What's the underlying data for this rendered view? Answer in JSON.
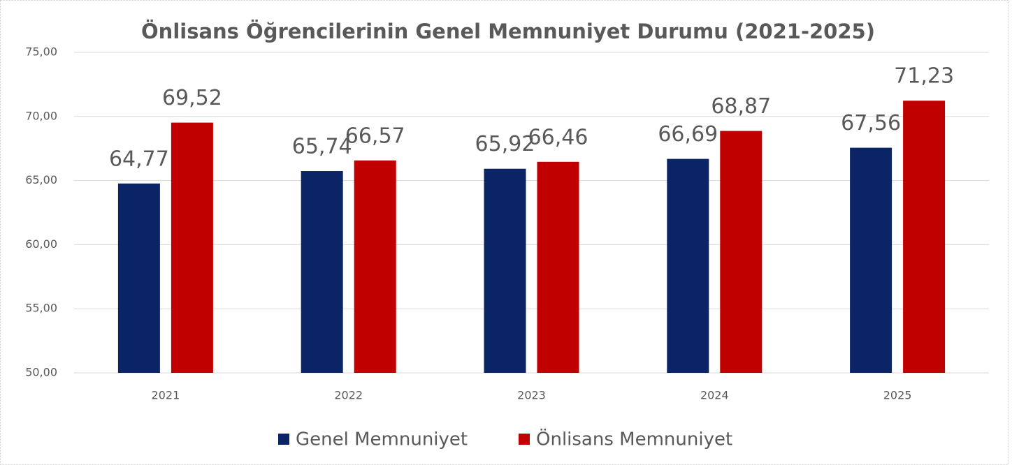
{
  "chart_data": {
    "type": "bar",
    "title": "Önlisans Öğrencilerinin Genel Memnuniyet Durumu (2021-2025)",
    "categories": [
      "2021",
      "2022",
      "2023",
      "2024",
      "2025"
    ],
    "series": [
      {
        "name": "Genel Memnuniyet",
        "color": "#0b2466",
        "values": [
          64.77,
          65.74,
          65.92,
          66.69,
          67.56
        ],
        "value_labels": [
          "64,77",
          "65,74",
          "65,92",
          "66,69",
          "67,56"
        ]
      },
      {
        "name": "Önlisans Memnuniyet",
        "color": "#c00000",
        "values": [
          69.52,
          66.57,
          66.46,
          68.87,
          71.23
        ],
        "value_labels": [
          "69,52",
          "66,57",
          "66,46",
          "68,87",
          "71,23"
        ]
      }
    ],
    "ylim": [
      50,
      75
    ],
    "yticks": [
      {
        "value": 50,
        "label": "50,00"
      },
      {
        "value": 55,
        "label": "55,00"
      },
      {
        "value": 60,
        "label": "60,00"
      },
      {
        "value": 65,
        "label": "65,00"
      },
      {
        "value": 70,
        "label": "70,00"
      },
      {
        "value": 75,
        "label": "75,00"
      }
    ],
    "grid": true,
    "legend": "bottom"
  }
}
